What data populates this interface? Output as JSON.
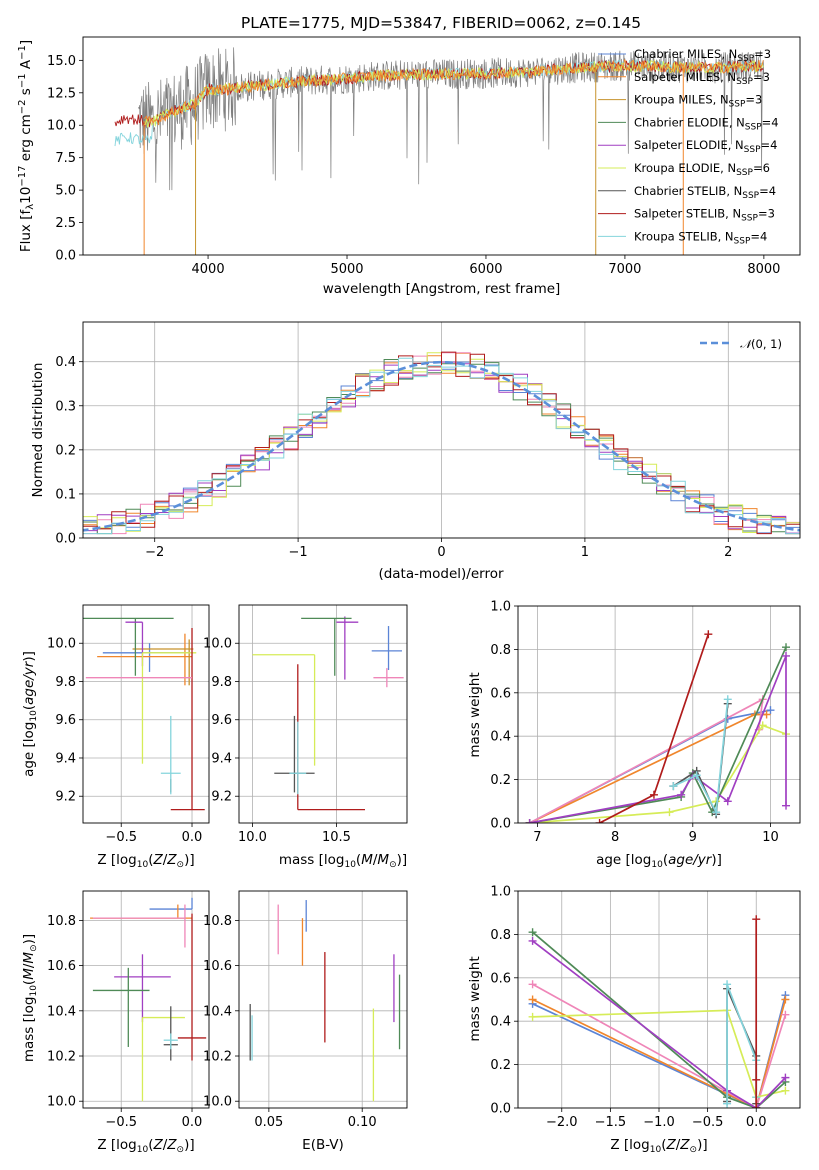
{
  "title": "PLATE=1775, MJD=53847, FIBERID=0062, z=0.145",
  "colors": {
    "Chabrier MILES": "#5b84d6",
    "Salpeter MILES": "#f0862c",
    "Kroupa MILES": "#c6922c",
    "Chabrier ELODIE": "#4f8a57",
    "Salpeter ELODIE": "#a03fc2",
    "Kroupa ELODIE": "#d6ec58",
    "Chabrier STELIB": "#555555",
    "Salpeter STELIB": "#b01c1c",
    "Kroupa STELIB": "#84d4dc",
    "Pink": "#ef86b8",
    "Normal": "#5b8fd9"
  },
  "chart_data": [
    {
      "id": "spectrum",
      "type": "line",
      "title": "PLATE=1775, MJD=53847, FIBERID=0062, z=0.145",
      "xlabel": "wavelength [Angstrom, rest frame]",
      "ylabel": "Flux [f",
      "xlim": [
        3100,
        8260
      ],
      "ylim": [
        0,
        16.8
      ],
      "xticks": [
        "4000",
        "5000",
        "6000",
        "7000",
        "8000"
      ],
      "yticks": [
        "0.0",
        "2.5",
        "5.0",
        "7.5",
        "10.0",
        "12.5",
        "15.0"
      ],
      "legend": [
        {
          "name": "Chabrier MILES, N",
          "sub": "SSP",
          "suffix": "=3",
          "color": "#5b84d6"
        },
        {
          "name": "Salpeter MILES, N",
          "sub": "SSP",
          "suffix": "=3",
          "color": "#f0862c"
        },
        {
          "name": "Kroupa MILES, N",
          "sub": "SSP",
          "suffix": "=3",
          "color": "#c6922c"
        },
        {
          "name": "Chabrier ELODIE, N",
          "sub": "SSP",
          "suffix": "=4",
          "color": "#4f8a57"
        },
        {
          "name": "Salpeter ELODIE, N",
          "sub": "SSP",
          "suffix": "=4",
          "color": "#a03fc2"
        },
        {
          "name": "Kroupa ELODIE, N",
          "sub": "SSP",
          "suffix": "=6",
          "color": "#d6ec58"
        },
        {
          "name": "Chabrier STELIB, N",
          "sub": "SSP",
          "suffix": "=4",
          "color": "#555555"
        },
        {
          "name": "Salpeter STELIB, N",
          "sub": "SSP",
          "suffix": "=3",
          "color": "#b01c1c"
        },
        {
          "name": "Kroupa STELIB, N",
          "sub": "SSP",
          "suffix": "=4",
          "color": "#84d4dc"
        }
      ],
      "model_curve": {
        "x": [
          3330,
          3400,
          3500,
          3600,
          3700,
          3800,
          3900,
          3950,
          4000,
          4100,
          4200,
          4300,
          4500,
          4700,
          5000,
          5200,
          5500,
          6000,
          6300,
          6600,
          7000,
          7300,
          7600,
          8000
        ],
        "y": [
          10.2,
          10.6,
          10.4,
          10.2,
          10.8,
          11.3,
          11.6,
          12.2,
          12.8,
          12.7,
          12.9,
          13.0,
          13.2,
          13.4,
          13.6,
          13.8,
          13.9,
          14.0,
          14.1,
          14.4,
          14.6,
          14.5,
          14.4,
          14.6
        ]
      },
      "drops": [
        3540,
        3910,
        6790,
        7420
      ]
    },
    {
      "id": "residuals",
      "type": "histogram",
      "xlabel": "(data-model)/error",
      "ylabel": "Normed distribution",
      "xlim": [
        -2.5,
        2.5
      ],
      "ylim": [
        0,
        0.49
      ],
      "xticks": [
        "−2",
        "−1",
        "0",
        "1",
        "2"
      ],
      "yticks": [
        "0.0",
        "0.1",
        "0.2",
        "0.3",
        "0.4"
      ],
      "legend": "N(0,1)",
      "legend_sub": "(0, 1)",
      "gaussian": {
        "mu": 0,
        "sigma": 1
      }
    },
    {
      "id": "age-vs-Z",
      "type": "errorbar",
      "xlabel": "Z [log",
      "ylabel": "age  [log",
      "xlim": [
        -0.77,
        0.12
      ],
      "ylim": [
        9.06,
        10.2
      ],
      "xticks": [
        "−0.5",
        "0.0"
      ],
      "yticks": [
        "9.2",
        "9.4",
        "9.6",
        "9.8",
        "10.0"
      ],
      "points": [
        {
          "x": -0.3,
          "y": 9.95,
          "xerr": [
            0.33,
            0.28
          ],
          "yerr": [
            0.1,
            0.05
          ],
          "color": "#5b84d6"
        },
        {
          "x": -0.05,
          "y": 9.93,
          "xerr": [
            0.62,
            0.05
          ],
          "yerr": [
            0.15,
            0.12
          ],
          "color": "#f0862c"
        },
        {
          "x": -0.02,
          "y": 9.97,
          "xerr": [
            0.4,
            0.03
          ],
          "yerr": [
            0.19,
            0.05
          ],
          "color": "#c6922c"
        },
        {
          "x": -0.4,
          "y": 10.13,
          "xerr": [
            0.38,
            0.27
          ],
          "yerr": [
            0.3,
            0.0
          ],
          "color": "#4f8a57"
        },
        {
          "x": -0.35,
          "y": 10.11,
          "xerr": [
            0.12,
            0.0
          ],
          "yerr": [
            0.23,
            0.0
          ],
          "color": "#a03fc2"
        },
        {
          "x": -0.35,
          "y": 9.95,
          "xerr": [
            0.0,
            0.38
          ],
          "yerr": [
            0.58,
            0.0
          ],
          "color": "#d6ec58"
        },
        {
          "x": -0.15,
          "y": 9.27,
          "xerr": [
            0.0,
            0.0
          ],
          "yerr": [
            0.05,
            0.02
          ],
          "color": "#555555"
        },
        {
          "x": 0.0,
          "y": 9.13,
          "xerr": [
            0.15,
            0.09
          ],
          "yerr": [
            0.0,
            0.95
          ],
          "color": "#b01c1c"
        },
        {
          "x": -0.15,
          "y": 9.32,
          "xerr": [
            0.07,
            0.07
          ],
          "yerr": [
            0.11,
            0.3
          ],
          "color": "#84d4dc"
        },
        {
          "x": -0.45,
          "y": 9.82,
          "xerr": [
            0.3,
            0.45
          ],
          "yerr": [
            0.0,
            0.0
          ],
          "color": "#ef86b8"
        }
      ]
    },
    {
      "id": "age-vs-mass",
      "type": "errorbar",
      "xlabel": "mass [log",
      "ylabel": "",
      "xlim": [
        9.92,
        10.92
      ],
      "ylim": [
        9.06,
        10.2
      ],
      "xticks": [
        "10.0",
        "10.5"
      ],
      "yticks": [
        "9.2",
        "9.4",
        "9.6",
        "9.8",
        "10.0"
      ],
      "points": [
        {
          "x": 10.81,
          "y": 9.96,
          "xerr": [
            0.1,
            0.08
          ],
          "yerr": [
            0.1,
            0.13
          ],
          "color": "#5b84d6"
        },
        {
          "x": 10.8,
          "y": 9.82,
          "xerr": [
            0.08,
            0.1
          ],
          "yerr": [
            0.05,
            0.05
          ],
          "color": "#ef86b8"
        },
        {
          "x": 10.55,
          "y": 10.11,
          "xerr": [
            0.05,
            0.08
          ],
          "yerr": [
            0.3,
            0.03
          ],
          "color": "#a03fc2"
        },
        {
          "x": 10.49,
          "y": 10.13,
          "xerr": [
            0.2,
            0.1
          ],
          "yerr": [
            0.3,
            0.0
          ],
          "color": "#4f8a57"
        },
        {
          "x": 10.37,
          "y": 9.94,
          "xerr": [
            0.37,
            0.0
          ],
          "yerr": [
            0.58,
            0.0
          ],
          "color": "#d6ec58"
        },
        {
          "x": 10.27,
          "y": 9.13,
          "xerr": [
            0.0,
            0.4
          ],
          "yerr": [
            0.0,
            0.76
          ],
          "color": "#b01c1c"
        },
        {
          "x": 10.25,
          "y": 9.32,
          "xerr": [
            0.12,
            0.12
          ],
          "yerr": [
            0.1,
            0.3
          ],
          "color": "#555555"
        },
        {
          "x": 10.27,
          "y": 9.32,
          "xerr": [
            0.05,
            0.05
          ],
          "yerr": [
            0.11,
            0.27
          ],
          "color": "#84d4dc"
        }
      ]
    },
    {
      "id": "mass-weight-vs-age",
      "type": "line",
      "xlabel": "age  [log",
      "ylabel": "mass weight",
      "xlim": [
        6.75,
        10.38
      ],
      "ylim": [
        0,
        1.0
      ],
      "xticks": [
        "7",
        "8",
        "9",
        "10"
      ],
      "yticks": [
        "0.0",
        "0.2",
        "0.4",
        "0.6",
        "0.8",
        "1.0"
      ],
      "series": [
        {
          "color": "#5b84d6",
          "x": [
            6.9,
            9.45,
            10.0
          ],
          "y": [
            0.0,
            0.48,
            0.52
          ]
        },
        {
          "color": "#f0862c",
          "x": [
            6.9,
            9.8,
            9.95
          ],
          "y": [
            0.0,
            0.5,
            0.5
          ]
        },
        {
          "color": "#ef86b8",
          "x": [
            6.9,
            9.9,
            9.85
          ],
          "y": [
            0.0,
            0.57,
            0.43
          ]
        },
        {
          "color": "#d6ec58",
          "x": [
            6.9,
            8.7,
            9.3,
            9.9,
            10.2
          ],
          "y": [
            0.0,
            0.05,
            0.1,
            0.45,
            0.41
          ]
        },
        {
          "color": "#4f8a57",
          "x": [
            6.9,
            8.85,
            9.0,
            9.25,
            10.2
          ],
          "y": [
            0.0,
            0.12,
            0.23,
            0.05,
            0.81
          ]
        },
        {
          "color": "#a03fc2",
          "x": [
            6.9,
            8.85,
            9.0,
            9.45,
            10.2,
            10.2
          ],
          "y": [
            0.0,
            0.13,
            0.22,
            0.1,
            0.77,
            0.08
          ]
        },
        {
          "color": "#555555",
          "x": [
            8.75,
            9.05,
            9.3,
            9.45
          ],
          "y": [
            0.17,
            0.24,
            0.04,
            0.55
          ]
        },
        {
          "color": "#84d4dc",
          "x": [
            8.75,
            9.05,
            9.3,
            9.45
          ],
          "y": [
            0.17,
            0.22,
            0.05,
            0.57
          ]
        },
        {
          "color": "#b01c1c",
          "x": [
            7.8,
            8.5,
            9.2
          ],
          "y": [
            0.0,
            0.13,
            0.87
          ]
        }
      ]
    },
    {
      "id": "mass-vs-Z",
      "type": "errorbar",
      "xlabel": "Z [log",
      "ylabel": "mass [log",
      "xlim": [
        -0.77,
        0.12
      ],
      "ylim": [
        9.97,
        10.93
      ],
      "xticks": [
        "−0.5",
        "0.0"
      ],
      "yticks": [
        "10.0",
        "10.2",
        "10.4",
        "10.6",
        "10.8"
      ],
      "points": [
        {
          "x": 0.0,
          "y": 10.85,
          "xerr": [
            0.3,
            0.0
          ],
          "yerr": [
            0.0,
            0.05
          ],
          "color": "#5b84d6"
        },
        {
          "x": -0.1,
          "y": 10.81,
          "xerr": [
            0.62,
            0.1
          ],
          "yerr": [
            0.0,
            0.06
          ],
          "color": "#f0862c"
        },
        {
          "x": -0.05,
          "y": 10.81,
          "xerr": [
            0.65,
            0.0
          ],
          "yerr": [
            0.13,
            0.06
          ],
          "color": "#ef86b8"
        },
        {
          "x": -0.35,
          "y": 10.55,
          "xerr": [
            0.2,
            0.2
          ],
          "yerr": [
            0.2,
            0.1
          ],
          "color": "#a03fc2"
        },
        {
          "x": -0.45,
          "y": 10.49,
          "xerr": [
            0.25,
            0.15
          ],
          "yerr": [
            0.25,
            0.1
          ],
          "color": "#4f8a57"
        },
        {
          "x": -0.35,
          "y": 10.37,
          "xerr": [
            0.0,
            0.3
          ],
          "yerr": [
            0.37,
            0.0
          ],
          "color": "#d6ec58"
        },
        {
          "x": 0.0,
          "y": 10.28,
          "xerr": [
            0.1,
            0.1
          ],
          "yerr": [
            0.1,
            0.55
          ],
          "color": "#b01c1c"
        },
        {
          "x": -0.15,
          "y": 10.25,
          "xerr": [
            0.05,
            0.05
          ],
          "yerr": [
            0.07,
            0.17
          ],
          "color": "#555555"
        },
        {
          "x": -0.15,
          "y": 10.27,
          "xerr": [
            0.05,
            0.05
          ],
          "yerr": [
            0.04,
            0.03
          ],
          "color": "#84d4dc"
        }
      ]
    },
    {
      "id": "mass-vs-EBV",
      "type": "errorbar",
      "xlabel": "E(B-V)",
      "ylabel": "",
      "xlim": [
        0.034,
        0.124
      ],
      "ylim": [
        9.97,
        10.93
      ],
      "xticks": [
        "0.05",
        "0.10"
      ],
      "yticks": [
        "10.0",
        "10.2",
        "10.4",
        "10.6",
        "10.8"
      ],
      "points": [
        {
          "x": 0.07,
          "y": 10.8,
          "xerr": [
            0,
            0
          ],
          "yerr": [
            0.05,
            0.09
          ],
          "color": "#5b84d6"
        },
        {
          "x": 0.068,
          "y": 10.75,
          "xerr": [
            0,
            0
          ],
          "yerr": [
            0.15,
            0.06
          ],
          "color": "#f0862c"
        },
        {
          "x": 0.055,
          "y": 10.77,
          "xerr": [
            0,
            0
          ],
          "yerr": [
            0.12,
            0.1
          ],
          "color": "#ef86b8"
        },
        {
          "x": 0.04,
          "y": 10.25,
          "xerr": [
            0,
            0
          ],
          "yerr": [
            0.07,
            0.18
          ],
          "color": "#555555"
        },
        {
          "x": 0.041,
          "y": 10.3,
          "xerr": [
            0,
            0
          ],
          "yerr": [
            0.12,
            0.08
          ],
          "color": "#84d4dc"
        },
        {
          "x": 0.08,
          "y": 10.5,
          "xerr": [
            0,
            0
          ],
          "yerr": [
            0.24,
            0.16
          ],
          "color": "#b01c1c"
        },
        {
          "x": 0.106,
          "y": 10.2,
          "xerr": [
            0,
            0
          ],
          "yerr": [
            0.2,
            0.21
          ],
          "color": "#d6ec58"
        },
        {
          "x": 0.117,
          "y": 10.5,
          "xerr": [
            0,
            0
          ],
          "yerr": [
            0.15,
            0.15
          ],
          "color": "#a03fc2"
        },
        {
          "x": 0.12,
          "y": 10.4,
          "xerr": [
            0,
            0
          ],
          "yerr": [
            0.17,
            0.16
          ],
          "color": "#4f8a57"
        }
      ]
    },
    {
      "id": "mass-weight-vs-Z",
      "type": "line",
      "xlabel": "Z [log",
      "ylabel": "mass weight",
      "xlim": [
        -2.45,
        0.45
      ],
      "ylim": [
        0,
        1.0
      ],
      "xticks": [
        "−2.0",
        "−1.5",
        "−1.0",
        "−0.5",
        "0.0"
      ],
      "yticks": [
        "0.0",
        "0.2",
        "0.4",
        "0.6",
        "0.8",
        "1.0"
      ],
      "series": [
        {
          "color": "#5b84d6",
          "x": [
            -2.3,
            0.0,
            0.3
          ],
          "y": [
            0.48,
            0.0,
            0.52
          ]
        },
        {
          "color": "#f0862c",
          "x": [
            -2.3,
            0.0,
            0.3
          ],
          "y": [
            0.5,
            0.0,
            0.5
          ]
        },
        {
          "color": "#ef86b8",
          "x": [
            -2.3,
            0.0,
            0.3
          ],
          "y": [
            0.57,
            0.0,
            0.43
          ]
        },
        {
          "color": "#d6ec58",
          "x": [
            -2.3,
            -0.3,
            0.0,
            0.3
          ],
          "y": [
            0.42,
            0.45,
            0.05,
            0.08
          ]
        },
        {
          "color": "#4f8a57",
          "x": [
            -2.3,
            -0.3,
            0.0,
            0.3
          ],
          "y": [
            0.81,
            0.05,
            0.0,
            0.12
          ]
        },
        {
          "color": "#a03fc2",
          "x": [
            -2.3,
            -0.3,
            0.0,
            0.3
          ],
          "y": [
            0.77,
            0.08,
            0.0,
            0.14
          ]
        },
        {
          "color": "#555555",
          "x": [
            -0.3,
            -0.3,
            0.0,
            0.0
          ],
          "y": [
            0.03,
            0.55,
            0.24,
            0.02
          ]
        },
        {
          "color": "#84d4dc",
          "x": [
            -0.3,
            -0.3,
            0.0,
            0.0
          ],
          "y": [
            0.02,
            0.57,
            0.22,
            0.05
          ]
        },
        {
          "color": "#b01c1c",
          "x": [
            0.0,
            0.0,
            0.0
          ],
          "y": [
            0.0,
            0.87,
            0.13
          ]
        }
      ]
    }
  ]
}
